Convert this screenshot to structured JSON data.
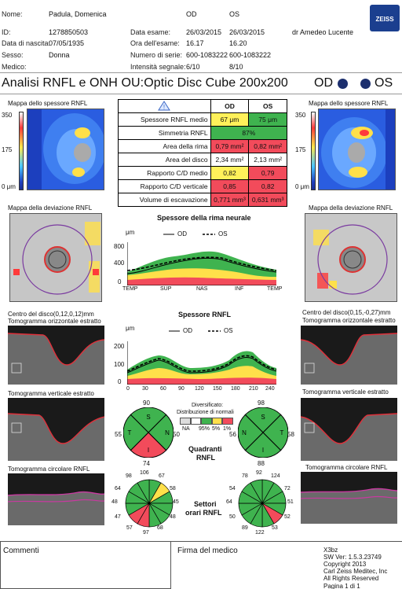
{
  "header": {
    "name_label": "Nome:",
    "name_value": "Padula, Domenica",
    "id_label": "ID:",
    "id_value": "1278850503",
    "dob_label": "Data di nascita:",
    "dob_value": "07/05/1935",
    "sex_label": "Sesso:",
    "sex_value": "Donna",
    "doctor_label": "Medico:",
    "od": "OD",
    "os": "OS",
    "exam_date_label": "Data esame:",
    "exam_date_od": "26/03/2015",
    "exam_date_os": "26/03/2015",
    "exam_time_label": "Ora dell'esame:",
    "exam_time_od": "16.17",
    "exam_time_os": "16.20",
    "serial_label": "Numero di serie:",
    "serial_od": "600-1083222",
    "serial_os": "600-1083222",
    "signal_label": "Intensità segnale:",
    "signal_od": "6/10",
    "signal_os": "8/10",
    "operator": "dr Amedeo Lucente",
    "brand": "ZEISS"
  },
  "title": {
    "text": "Analisi RNFL e ONH OU:Optic Disc Cube 200x200",
    "od": "OD",
    "os": "OS"
  },
  "maps": {
    "thickness_title": "Mappa dello spessore RNFL",
    "scale_350": "350",
    "scale_175": "175",
    "scale_0": "0 μm",
    "deviation_title": "Mappa della deviazione RNFL"
  },
  "table": {
    "col_od": "OD",
    "col_os": "OS",
    "rows": [
      {
        "label": "Spessore RNFL medio",
        "od": "67 μm",
        "os": "75 μm"
      },
      {
        "label": "Simmetria RNFL",
        "both": "87%"
      },
      {
        "label": "Area della rima",
        "od": "0,79 mm²",
        "os": "0,82 mm²"
      },
      {
        "label": "Area del disco",
        "od": "2,34 mm²",
        "os": "2,13 mm²"
      },
      {
        "label": "Rapporto C/D medio",
        "od": "0,82",
        "os": "0,79"
      },
      {
        "label": "Rapporto C/D verticale",
        "od": "0,85",
        "os": "0,82"
      },
      {
        "label": "Volume di escavazione",
        "od": "0,771 mm³",
        "os": "0,631 mm³"
      }
    ]
  },
  "chart1": {
    "title": "Spessore della rima neurale",
    "unit": "μm",
    "legend_od": "OD",
    "legend_os": "OS",
    "yticks": [
      "800",
      "400",
      "0"
    ],
    "xticks": [
      "TEMP",
      "SUP",
      "NAS",
      "INF",
      "TEMP"
    ]
  },
  "chart2": {
    "title": "Spessore RNFL",
    "unit": "μm",
    "legend_od": "OD",
    "legend_os": "OS",
    "yticks": [
      "200",
      "100",
      "0"
    ],
    "xticks": [
      "0",
      "30",
      "60",
      "90",
      "120",
      "150",
      "180",
      "210",
      "240"
    ]
  },
  "tomo": {
    "od_center": "Centro del disco(0,12,0,12)mm",
    "os_center": "Centro del disco(0,15,-0,27)mm",
    "horiz": "Tomogramma orizzontale estratto",
    "vert": "Tomogramma verticale estratto",
    "circ": "Tomogramma circolare RNFL"
  },
  "legend_dist": {
    "title1": "Diversificato:",
    "title2": "Distribuzione di normali",
    "labels": [
      "NA",
      "95%",
      "5%",
      "1%"
    ]
  },
  "quadrants": {
    "label1": "Quadranti",
    "label2": "RNFL",
    "od": {
      "top": "90",
      "left": "55",
      "right": "50",
      "bottom": "74",
      "T": "T",
      "S": "S",
      "N": "N",
      "I": "I"
    },
    "os": {
      "top": "98",
      "left": "56",
      "right": "58",
      "bottom": "88",
      "T": "T",
      "S": "S",
      "N": "N",
      "I": "I"
    }
  },
  "clock": {
    "label1": "Settori",
    "label2": "orari RNFL",
    "od": [
      "106",
      "67",
      "58",
      "45",
      "48",
      "68",
      "97",
      "57",
      "47",
      "48",
      "64",
      "98"
    ],
    "os": [
      "92",
      "124",
      "72",
      "51",
      "52",
      "53",
      "122",
      "89",
      "50",
      "64",
      "54",
      "78"
    ]
  },
  "footer": {
    "comments": "Commenti",
    "signature": "Firma del medico",
    "info": [
      "X3bz",
      "SW Ver: 1.5.3.23749",
      "Copyright 2013",
      "Carl Zeiss Meditec, Inc",
      "All Rights Reserved",
      "Pagina 1 di 1"
    ]
  }
}
